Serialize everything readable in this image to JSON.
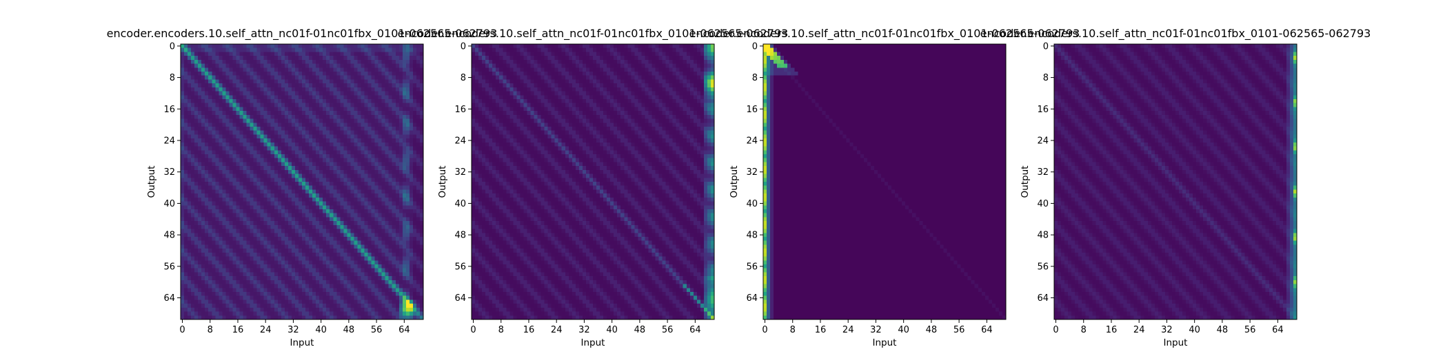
{
  "chart_data": [
    {
      "type": "heatmap",
      "title": "encoder.encoders.10.self_attn_nc01f-01nc01fbx_0101-062565-062793",
      "xlabel": "Input",
      "ylabel": "Output",
      "size": 70,
      "xticks": [
        0,
        8,
        16,
        24,
        32,
        40,
        48,
        56,
        64
      ],
      "yticks": [
        0,
        8,
        16,
        24,
        32,
        40,
        48,
        56,
        64
      ],
      "colormap": "viridis",
      "pattern": "strong main diagonal, multiple parallel stripes, bright column near input 64-66, bright bottom-right corner"
    },
    {
      "type": "heatmap",
      "title": "encoder.encoders.10.self_attn_nc01f-01nc01fbx_0101-062565-062793",
      "xlabel": "Input",
      "ylabel": "Output",
      "size": 70,
      "xticks": [
        0,
        8,
        16,
        24,
        32,
        40,
        48,
        56,
        64
      ],
      "yticks": [
        0,
        8,
        16,
        24,
        32,
        40,
        48,
        56,
        64
      ],
      "colormap": "viridis",
      "pattern": "faint diagonal stripes, bright last columns (inputs 67-69) especially near top"
    },
    {
      "type": "heatmap",
      "title": "encoder.encoders.10.self_attn_nc01f-01nc01fbx_0101-062565-062793",
      "xlabel": "Input",
      "ylabel": "Output",
      "size": 70,
      "xticks": [
        0,
        8,
        16,
        24,
        32,
        40,
        48,
        56,
        64
      ],
      "yticks": [
        0,
        8,
        16,
        24,
        32,
        40,
        48,
        56,
        64
      ],
      "colormap": "viridis",
      "pattern": "bright first column (input 0), bright top-left diagonal for outputs 0-5, nearly uniform elsewhere"
    },
    {
      "type": "heatmap",
      "title": "encoder.encoders.10.self_attn_nc01f-01nc01fbx_0101-062565-062793",
      "xlabel": "Input",
      "ylabel": "Output",
      "size": 70,
      "xticks": [
        0,
        8,
        16,
        24,
        32,
        40,
        48,
        56,
        64
      ],
      "yticks": [
        0,
        8,
        16,
        24,
        32,
        40,
        48,
        56,
        64
      ],
      "colormap": "viridis",
      "pattern": "faint diagonal stripes, bright last column (input 69) with spots along output axis"
    }
  ]
}
